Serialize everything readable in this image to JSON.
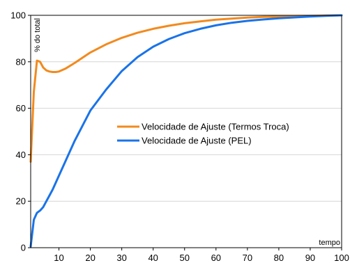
{
  "chart_data": {
    "type": "line",
    "title": "",
    "xlabel": "tempo",
    "ylabel": "% do total",
    "xlim": [
      1,
      100
    ],
    "ylim": [
      0,
      100
    ],
    "x_ticks": [
      10,
      20,
      30,
      40,
      50,
      60,
      70,
      80,
      90,
      100
    ],
    "y_ticks": [
      0,
      20,
      40,
      60,
      80,
      100
    ],
    "grid": "horizontal",
    "legend_position": "center-right",
    "series": [
      {
        "name": "Velocidade de Ajuste (Termos Troca)",
        "color": "#f28a1e",
        "x": [
          1,
          2,
          3,
          4,
          5,
          6,
          7,
          8,
          9,
          10,
          12,
          15,
          20,
          25,
          30,
          35,
          40,
          45,
          50,
          55,
          60,
          65,
          70,
          75,
          80,
          85,
          90,
          95,
          100
        ],
        "y": [
          37,
          67,
          80.5,
          80,
          77.5,
          76.3,
          75.8,
          75.6,
          75.6,
          75.8,
          77,
          79.5,
          84,
          87.5,
          90.3,
          92.5,
          94.2,
          95.5,
          96.6,
          97.4,
          98.1,
          98.6,
          99.0,
          99.3,
          99.5,
          99.7,
          99.8,
          99.9,
          100
        ]
      },
      {
        "name": "Velocidade de Ajuste (PEL)",
        "color": "#1a73e8",
        "x": [
          1,
          2,
          3,
          4,
          5,
          6,
          7,
          8,
          9,
          10,
          12,
          15,
          20,
          25,
          30,
          35,
          40,
          45,
          50,
          55,
          60,
          65,
          70,
          75,
          80,
          85,
          90,
          95,
          100
        ],
        "y": [
          0.5,
          12,
          15,
          16,
          17.5,
          20,
          22.5,
          25,
          28,
          31,
          37,
          46,
          59,
          68,
          76,
          82,
          86.5,
          89.8,
          92.3,
          94.2,
          95.7,
          96.8,
          97.6,
          98.2,
          98.7,
          99.1,
          99.5,
          99.8,
          100
        ]
      }
    ]
  }
}
